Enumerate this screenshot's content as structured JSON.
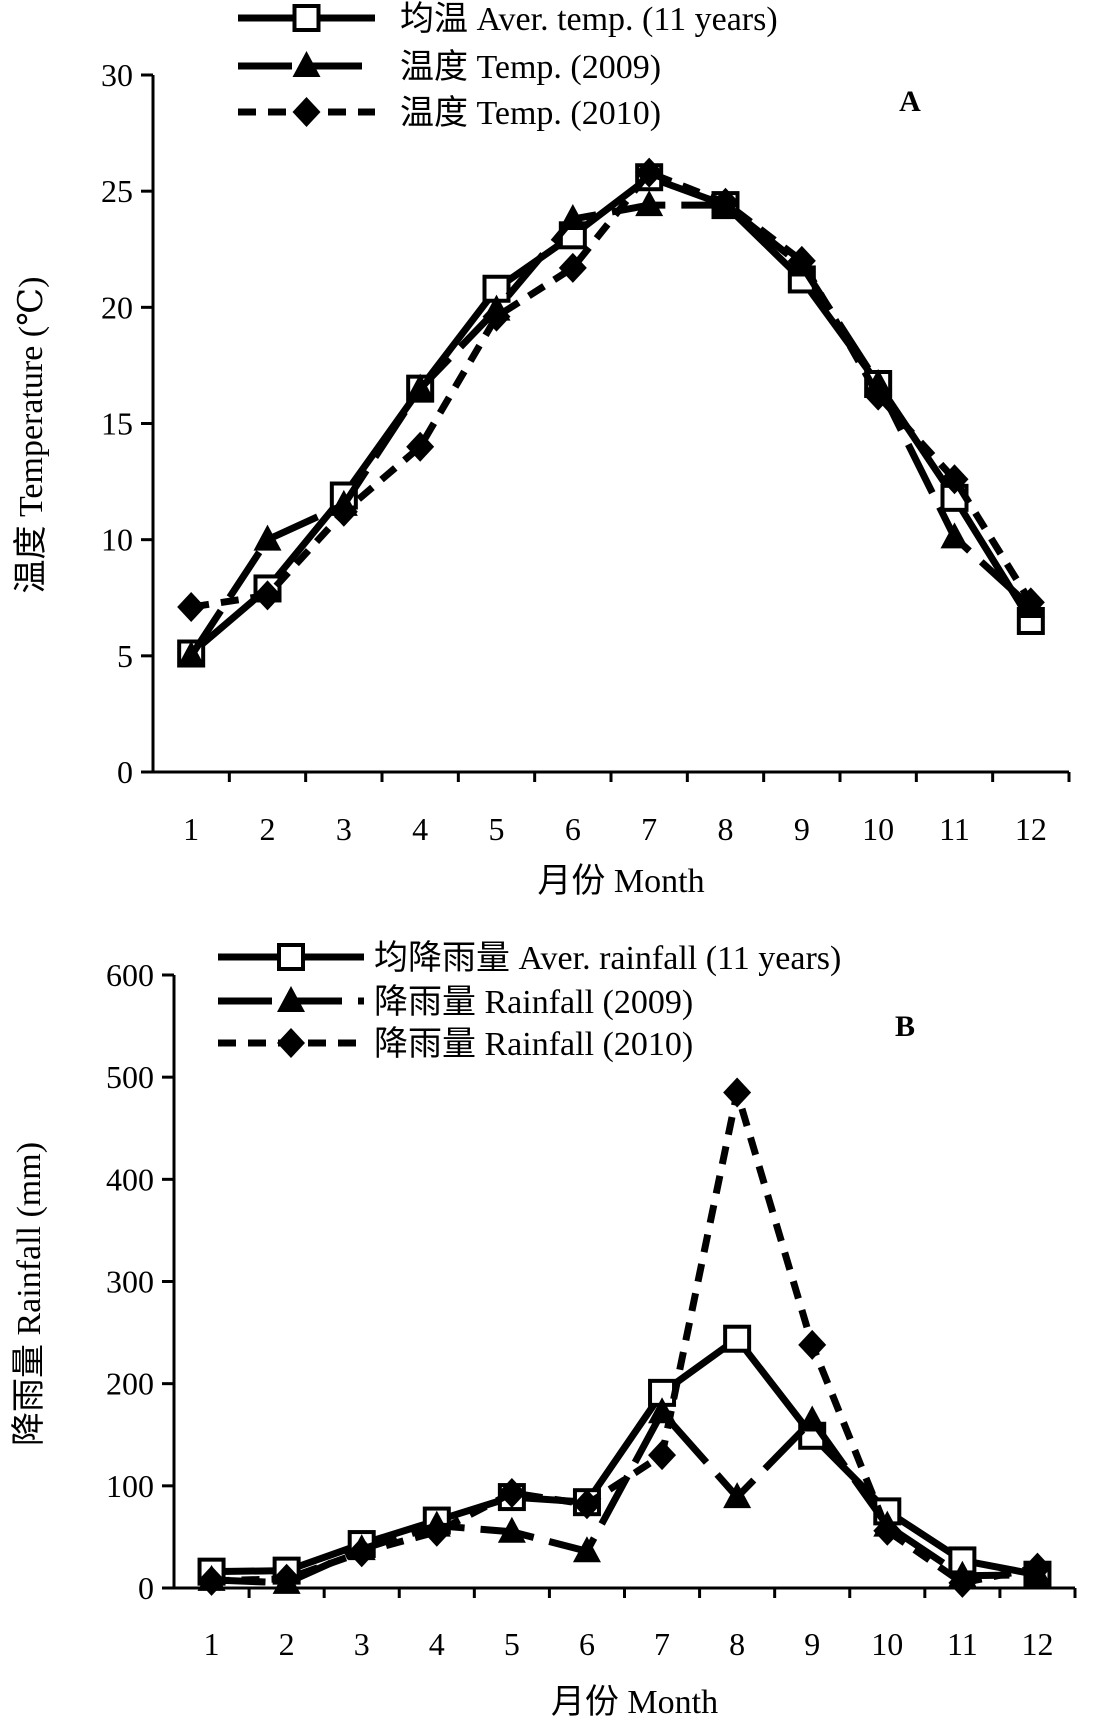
{
  "chart_data": [
    {
      "type": "line",
      "panel_label": "A",
      "xlabel": "月份 Month",
      "ylabel": "温度 Temperature (℃)",
      "categories": [
        "1",
        "2",
        "3",
        "4",
        "5",
        "6",
        "7",
        "8",
        "9",
        "10",
        "11",
        "12"
      ],
      "ylim": [
        0,
        30
      ],
      "yticks": [
        "0",
        "5",
        "10",
        "15",
        "20",
        "25",
        "30"
      ],
      "legend_position": "top",
      "grid": false,
      "series": [
        {
          "name": "均温 Aver. temp. (11 years)",
          "marker": "open-square",
          "line": "solid",
          "values": [
            5.1,
            7.9,
            11.9,
            16.5,
            20.8,
            23.1,
            25.6,
            24.4,
            21.2,
            16.7,
            11.8,
            6.5
          ]
        },
        {
          "name": "温度 Temp. (2009)",
          "marker": "filled-triangle",
          "line": "long-dash",
          "values": [
            5.0,
            10.0,
            11.5,
            16.5,
            19.9,
            23.8,
            24.4,
            24.4,
            21.8,
            16.7,
            10.1,
            7.1
          ]
        },
        {
          "name": "温度 Temp. (2010)",
          "marker": "filled-diamond",
          "line": "short-dash",
          "values": [
            7.1,
            7.6,
            11.2,
            14.0,
            19.6,
            21.7,
            25.8,
            24.5,
            22.0,
            16.2,
            12.6,
            7.3
          ]
        }
      ]
    },
    {
      "type": "line",
      "panel_label": "B",
      "xlabel": "月份 Month",
      "ylabel": "降雨量 Rainfall (mm)",
      "categories": [
        "1",
        "2",
        "3",
        "4",
        "5",
        "6",
        "7",
        "8",
        "9",
        "10",
        "11",
        "12"
      ],
      "ylim": [
        0,
        600
      ],
      "yticks": [
        "0",
        "100",
        "200",
        "300",
        "400",
        "500",
        "600"
      ],
      "legend_position": "top",
      "grid": false,
      "series": [
        {
          "name": "均降雨量 Aver. rainfall (11 years)",
          "marker": "open-square",
          "line": "solid",
          "values": [
            16,
            17,
            43,
            66,
            89,
            84,
            191,
            244,
            149,
            75,
            27,
            13
          ]
        },
        {
          "name": "降雨量 Rainfall (2009)",
          "marker": "filled-triangle",
          "line": "long-dash",
          "values": [
            8,
            5,
            38,
            61,
            55,
            36,
            172,
            89,
            164,
            61,
            12,
            13
          ]
        },
        {
          "name": "降雨量 Rainfall (2010)",
          "marker": "filled-diamond",
          "line": "short-dash",
          "values": [
            7,
            9,
            35,
            55,
            93,
            82,
            130,
            485,
            238,
            56,
            5,
            20
          ]
        }
      ]
    }
  ]
}
